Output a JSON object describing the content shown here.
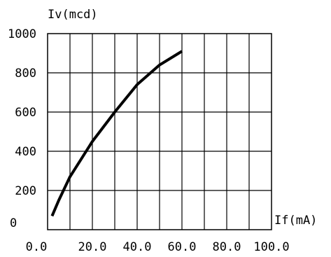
{
  "chart_data": {
    "type": "line",
    "ylabel": "Iv(mcd)",
    "xlabel": "If(mA)",
    "xlim": [
      0,
      100
    ],
    "ylim": [
      0,
      1000
    ],
    "x_ticks": [
      "0.0",
      "20.0",
      "40.0",
      "60.0",
      "80.0",
      "100.0"
    ],
    "y_ticks": [
      "0",
      "200",
      "400",
      "600",
      "800",
      "1000"
    ],
    "grid": true,
    "series": [
      {
        "x": [
          2,
          5,
          10,
          20,
          30,
          40,
          50,
          60
        ],
        "y": [
          70,
          150,
          270,
          450,
          600,
          740,
          840,
          910
        ]
      }
    ],
    "line_color": "#000000"
  }
}
